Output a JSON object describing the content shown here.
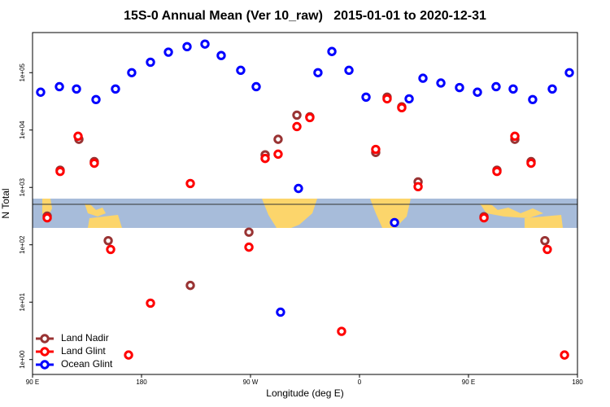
{
  "chart_data": {
    "type": "scatter",
    "title": "15S-0 Annual Mean (Ver 10_raw)   2015-01-01 to 2020-12-31",
    "x_label": "Longitude (deg E)",
    "y_label": "N Total",
    "xlim": [
      90,
      540
    ],
    "xticks": [
      {
        "value": 90,
        "label": "90 E"
      },
      180,
      {
        "value": 270,
        "label": "90 W"
      },
      {
        "value": 360,
        "label": "0"
      },
      {
        "value": 450,
        "label": "90 E"
      },
      {
        "value": 540,
        "label": "180"
      }
    ],
    "ylim": [
      0.55,
      500000
    ],
    "log_y": true,
    "yticks": [
      {
        "value": 1,
        "label": "1e+00"
      },
      {
        "value": 10,
        "label": "1e+01"
      },
      {
        "value": 100,
        "label": "1e+02"
      },
      {
        "value": 1000,
        "label": "1e+03"
      },
      {
        "value": 10000,
        "label": "1e+04"
      },
      {
        "value": 100000,
        "label": "1e+05"
      }
    ],
    "legend": "bottom-left",
    "series": [
      {
        "name": "Land Nadir",
        "color": "#993333",
        "x": [
          102.1,
          112.8,
          128.3,
          141.0,
          152.5,
          220.3,
          268.7,
          282.1,
          292.8,
          308.3,
          319.0,
          373.4,
          382.8,
          394.9,
          408.4,
          462.8,
          473.5,
          488.3,
          501.7,
          513.1
        ],
        "values": [
          316,
          2000,
          6900,
          2820,
          118,
          19.6,
          166,
          3700,
          6900,
          18200,
          17000,
          4070,
          37500,
          25400,
          1250,
          309,
          2000,
          6900,
          2820,
          118
        ]
      },
      {
        "name": "Land Glint",
        "color": "#ff0000",
        "x": [
          102.1,
          112.8,
          127.6,
          141.0,
          154.5,
          169.3,
          187.4,
          220.3,
          268.7,
          282.1,
          292.8,
          308.3,
          319.0,
          345.2,
          373.4,
          382.8,
          394.9,
          408.4,
          462.8,
          473.5,
          488.3,
          501.7,
          515.1,
          529.3
        ],
        "values": [
          295,
          1900,
          7800,
          2640,
          83,
          1.2,
          9.6,
          1170,
          91,
          3200,
          3800,
          11500,
          16500,
          3.1,
          4600,
          35000,
          24500,
          1030,
          295,
          1900,
          7800,
          2640,
          83,
          1.2
        ]
      },
      {
        "name": "Ocean Glint",
        "color": "#0000ff",
        "x": [
          96.7,
          112.2,
          126.3,
          142.4,
          158.5,
          171.9,
          187.4,
          202.2,
          217.6,
          232.4,
          245.8,
          261.9,
          274.7,
          294.8,
          309.6,
          325.7,
          337.2,
          351.3,
          365.4,
          388.9,
          401.0,
          412.4,
          427.2,
          442.6,
          457.4,
          472.8,
          486.9,
          503.0,
          519.2,
          533.3
        ],
        "values": [
          45700,
          57000,
          52000,
          34000,
          52000,
          100000,
          152000,
          228000,
          284000,
          315000,
          199000,
          110000,
          57000,
          6.7,
          960,
          100000,
          234000,
          110000,
          37500,
          244,
          35000,
          80000,
          66000,
          55000,
          45700,
          57000,
          52000,
          34000,
          52000,
          100000
        ]
      }
    ]
  }
}
